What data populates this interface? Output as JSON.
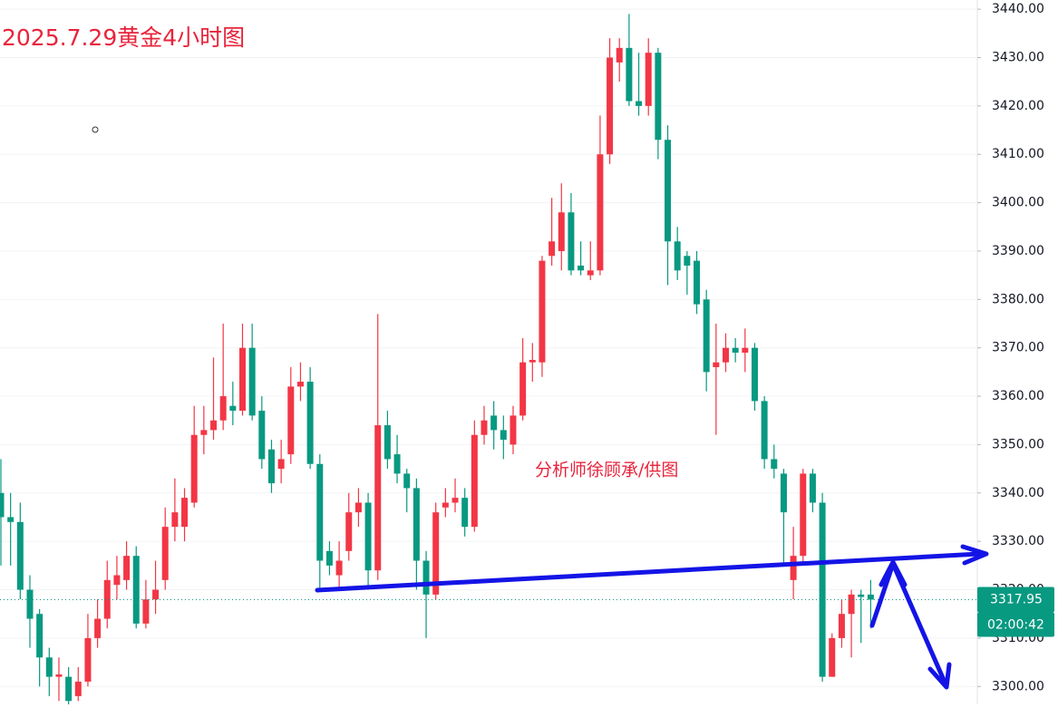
{
  "chart_data": {
    "type": "candlestick",
    "title": "2025.7.29黄金4小时图",
    "annotation": "分析师徐顾承/供图",
    "up_color": "#f23645",
    "down_color": "#089981",
    "ylim": [
      3296.3,
      3441.9
    ],
    "yticks": [
      {
        "value": 3300,
        "label": "3300.00"
      },
      {
        "value": 3310,
        "label": "3310.00"
      },
      {
        "value": 3320,
        "label": "3320.00"
      },
      {
        "value": 3330,
        "label": "3330.00"
      },
      {
        "value": 3340,
        "label": "3340.00"
      },
      {
        "value": 3350,
        "label": "3350.00"
      },
      {
        "value": 3360,
        "label": "3360.00"
      },
      {
        "value": 3370,
        "label": "3370.00"
      },
      {
        "value": 3380,
        "label": "3380.00"
      },
      {
        "value": 3390,
        "label": "3390.00"
      },
      {
        "value": 3400,
        "label": "3400.00"
      },
      {
        "value": 3410,
        "label": "3410.00"
      },
      {
        "value": 3420,
        "label": "3420.00"
      },
      {
        "value": 3430,
        "label": "3430.00"
      },
      {
        "value": 3440,
        "label": "3440.00"
      }
    ],
    "current_price": 3317.95,
    "countdown": "02:00:42",
    "open": [
      3340,
      3335,
      3334,
      3320,
      3315,
      3306,
      3302,
      3302,
      3298,
      3301,
      3310,
      3314,
      3321,
      3322,
      3327,
      3313,
      3318,
      3322,
      3333,
      3333,
      3338,
      3352,
      3353,
      3355,
      3358,
      3357,
      3370,
      3357,
      3349,
      3345,
      3348,
      3362,
      3363,
      3346,
      3328,
      3323,
      3328,
      3336,
      3338,
      3324,
      3354,
      3348,
      3344,
      3341,
      3326,
      3319,
      3337,
      3338,
      3339,
      3333,
      3352,
      3356,
      3353,
      3350,
      3356,
      3367,
      3367,
      3389,
      3390,
      3398,
      3387,
      3385,
      3386,
      3410,
      3429,
      3432,
      3421,
      3420,
      3431,
      3413,
      3392,
      3389,
      3388,
      3380,
      3366,
      3367,
      3370,
      3369,
      3370,
      3359,
      3347,
      3344,
      3322,
      3327,
      3344,
      3338,
      3302,
      3310,
      3315,
      3319,
      3319
    ],
    "high": [
      3347,
      3340,
      3338,
      3323,
      3316,
      3308,
      3306,
      3304,
      3304,
      3315,
      3318,
      3326,
      3327,
      3330,
      3329,
      3322,
      3326,
      3337,
      3343,
      3341,
      3358,
      3358,
      3368,
      3375,
      3363,
      3375,
      3375,
      3360,
      3351,
      3351,
      3366,
      3367,
      3366,
      3348,
      3330,
      3330,
      3340,
      3341,
      3340,
      3377,
      3357,
      3352,
      3345,
      3343,
      3328,
      3338,
      3341,
      3343,
      3341,
      3355,
      3358,
      3359,
      3356,
      3358,
      3372,
      3371,
      3389,
      3401,
      3404,
      3402,
      3392,
      3392,
      3418,
      3434,
      3434,
      3439,
      3431,
      3434,
      3432,
      3416,
      3395,
      3390,
      3390,
      3382,
      3375,
      3373,
      3372,
      3374,
      3371,
      3360,
      3350,
      3345,
      3333,
      3345,
      3345,
      3340,
      3311,
      3318,
      3320,
      3320,
      3322
    ],
    "low": [
      3325,
      3325,
      3318,
      3308,
      3300,
      3298,
      3297,
      3296,
      3297,
      3300,
      3308,
      3312,
      3318,
      3320,
      3312,
      3312,
      3315,
      3320,
      3330,
      3330,
      3337,
      3348,
      3351,
      3353,
      3354,
      3356,
      3355,
      3345,
      3340,
      3342,
      3346,
      3359,
      3345,
      3320,
      3323,
      3320,
      3326,
      3333,
      3320,
      3322,
      3345,
      3342,
      3336,
      3320,
      3310,
      3318,
      3335,
      3336,
      3331,
      3332,
      3350,
      3349,
      3347,
      3348,
      3355,
      3363,
      3364,
      3387,
      3386,
      3385,
      3385,
      3384,
      3385,
      3408,
      3425,
      3420,
      3418,
      3418,
      3409,
      3383,
      3384,
      3381,
      3377,
      3361,
      3352,
      3365,
      3367,
      3365,
      3357,
      3345,
      3343,
      3325,
      3318,
      3325,
      3336,
      3301,
      3302,
      3308,
      3306,
      3309,
      3312
    ],
    "close": [
      3335,
      3334,
      3320,
      3314,
      3306,
      3302,
      3302.5,
      3297,
      3301,
      3310,
      3314,
      3322,
      3323,
      3327,
      3313,
      3318,
      3320,
      3333,
      3336,
      3339,
      3352,
      3353,
      3355,
      3360,
      3357,
      3370,
      3356,
      3347,
      3342,
      3347,
      3362,
      3363,
      3346,
      3326,
      3325,
      3326,
      3336,
      3338,
      3324,
      3354,
      3347,
      3344,
      3341,
      3326,
      3319,
      3336,
      3338,
      3339,
      3333,
      3352,
      3355,
      3353,
      3351,
      3356,
      3367,
      3367.5,
      3388,
      3392,
      3398,
      3386,
      3386,
      3386,
      3410,
      3430,
      3432,
      3421,
      3420,
      3431,
      3413,
      3392,
      3386,
      3387,
      3379,
      3365,
      3367,
      3370,
      3369,
      3370,
      3359,
      3347,
      3345,
      3336,
      3327,
      3344,
      3338,
      3302,
      3310,
      3315,
      3319,
      3318.5,
      3317.95
    ]
  }
}
